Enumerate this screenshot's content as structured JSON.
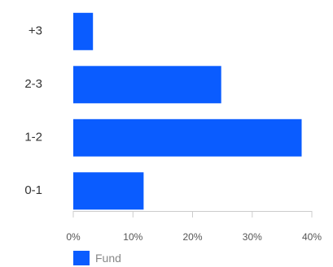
{
  "chart_data": {
    "type": "bar",
    "orientation": "horizontal",
    "categories": [
      "+3",
      "2-3",
      "1-2",
      "0-1"
    ],
    "series": [
      {
        "name": "Fund",
        "values": [
          3.3,
          24.8,
          38.3,
          11.8
        ],
        "color": "#0a5cff"
      }
    ],
    "xlim": [
      0,
      40
    ],
    "xticks": [
      0,
      10,
      20,
      30,
      40
    ],
    "xtick_labels": [
      "0%",
      "10%",
      "20%",
      "30%",
      "40%"
    ],
    "grid": false,
    "legend_position": "bottom-left"
  }
}
